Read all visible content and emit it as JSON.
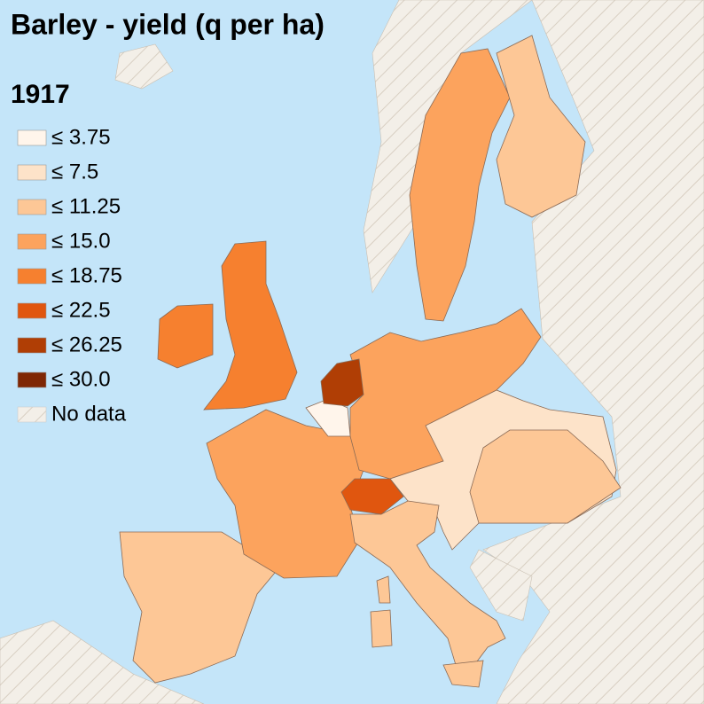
{
  "title": "Barley - yield (q per ha)",
  "year": "1917",
  "legend": [
    {
      "label": "≤ 3.75",
      "color": "#fff5eb"
    },
    {
      "label": "≤ 7.5",
      "color": "#fde3c9"
    },
    {
      "label": "≤ 11.25",
      "color": "#fdc796"
    },
    {
      "label": "≤ 15.0",
      "color": "#fca35d"
    },
    {
      "label": "≤ 18.75",
      "color": "#f6802f"
    },
    {
      "label": "≤ 22.5",
      "color": "#e0560f"
    },
    {
      "label": "≤ 26.25",
      "color": "#b03e05"
    },
    {
      "label": "≤ 30.0",
      "color": "#7f2704"
    }
  ],
  "no_data": {
    "label": "No data",
    "color": "#f3efe8"
  }
}
